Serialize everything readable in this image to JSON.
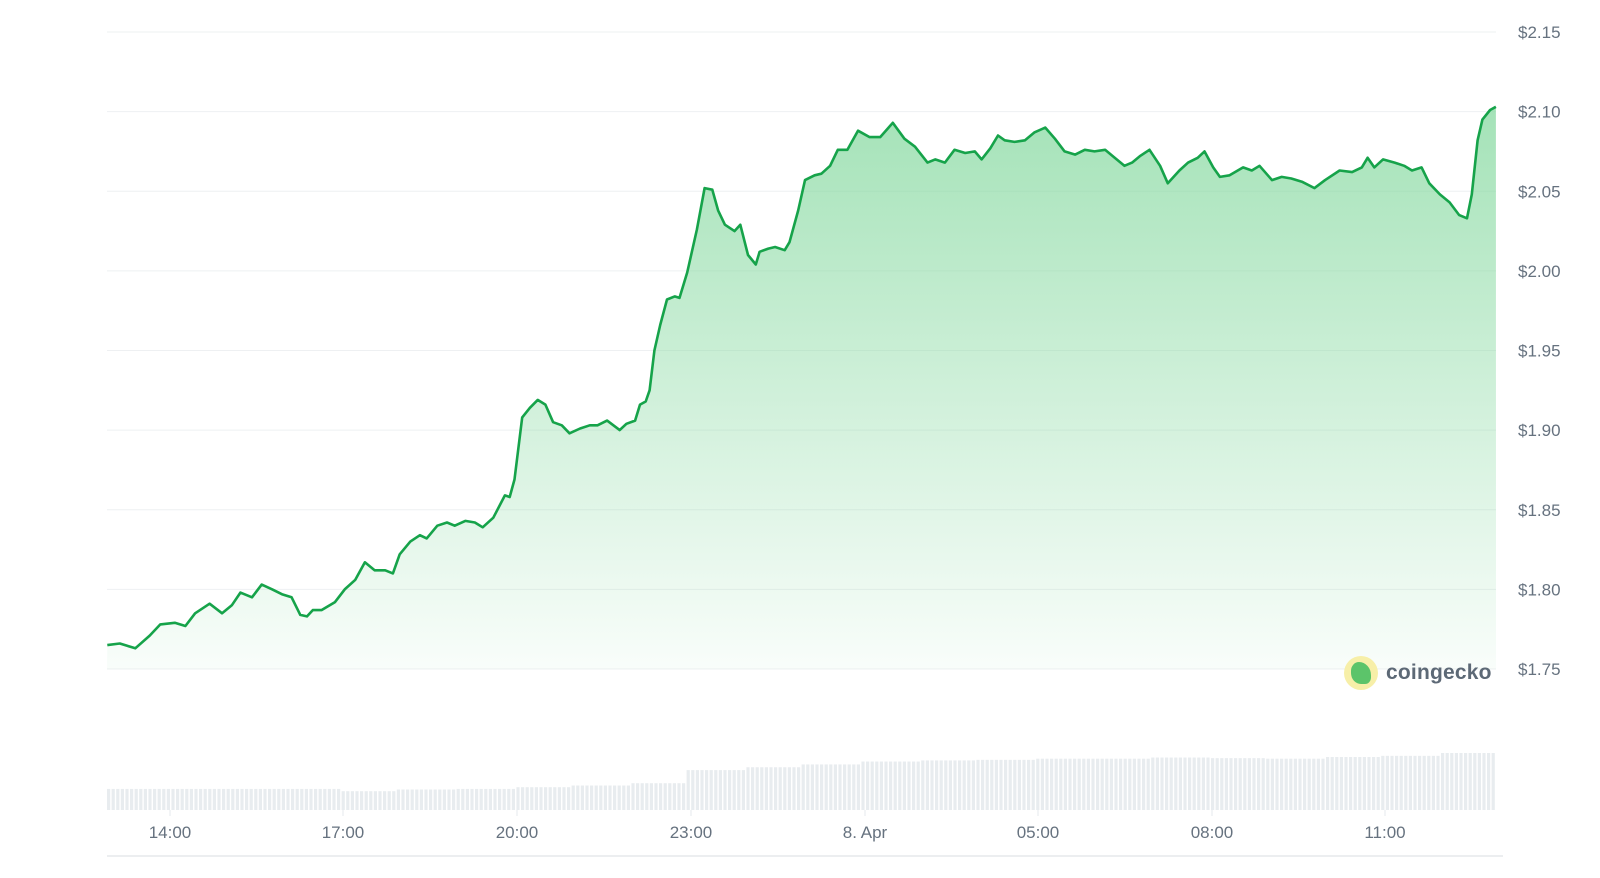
{
  "chart_data": {
    "type": "area",
    "title": "",
    "xlabel": "",
    "ylabel": "",
    "y_tick_labels": [
      "$2.15",
      "$2.10",
      "$2.05",
      "$2.00",
      "$1.95",
      "$1.90",
      "$1.85",
      "$1.80",
      "$1.75"
    ],
    "y_ticks": [
      2.15,
      2.1,
      2.05,
      2.0,
      1.95,
      1.9,
      1.85,
      1.8,
      1.75
    ],
    "ylim": [
      1.75,
      2.15
    ],
    "x_tick_labels": [
      "14:00",
      "17:00",
      "20:00",
      "23:00",
      "8. Apr",
      "05:00",
      "08:00",
      "11:00"
    ],
    "x_range": [
      "12:55",
      "12:55 (next day)"
    ],
    "grid": "horizontal",
    "line_color": "#16a34a",
    "fill_color": "#86d9a0",
    "series": [
      {
        "points": [
          [
            "12:55",
            1.765
          ],
          [
            "13:08",
            1.766
          ],
          [
            "13:24",
            1.763
          ],
          [
            "13:39",
            1.771
          ],
          [
            "13:50",
            1.778
          ],
          [
            "14:05",
            1.779
          ],
          [
            "14:16",
            1.777
          ],
          [
            "14:26",
            1.785
          ],
          [
            "14:41",
            1.791
          ],
          [
            "14:54",
            1.785
          ],
          [
            "15:04",
            1.79
          ],
          [
            "15:13",
            1.798
          ],
          [
            "15:25",
            1.795
          ],
          [
            "15:35",
            1.803
          ],
          [
            "15:46",
            1.8
          ],
          [
            "15:56",
            1.797
          ],
          [
            "16:06",
            1.795
          ],
          [
            "16:15",
            1.784
          ],
          [
            "16:22",
            1.783
          ],
          [
            "16:28",
            1.787
          ],
          [
            "16:37",
            1.787
          ],
          [
            "16:51",
            1.792
          ],
          [
            "17:01",
            1.8
          ],
          [
            "17:12",
            1.806
          ],
          [
            "17:22",
            1.817
          ],
          [
            "17:32",
            1.812
          ],
          [
            "17:43",
            1.812
          ],
          [
            "17:51",
            1.81
          ],
          [
            "17:58",
            1.822
          ],
          [
            "18:09",
            1.83
          ],
          [
            "18:19",
            1.834
          ],
          [
            "18:26",
            1.832
          ],
          [
            "18:37",
            1.84
          ],
          [
            "18:47",
            1.842
          ],
          [
            "18:55",
            1.84
          ],
          [
            "19:06",
            1.843
          ],
          [
            "19:16",
            1.842
          ],
          [
            "19:24",
            1.839
          ],
          [
            "19:35",
            1.845
          ],
          [
            "19:47",
            1.859
          ],
          [
            "19:52",
            1.858
          ],
          [
            "19:57",
            1.869
          ],
          [
            "20:05",
            1.908
          ],
          [
            "20:13",
            1.914
          ],
          [
            "20:21",
            1.919
          ],
          [
            "20:29",
            1.916
          ],
          [
            "20:37",
            1.905
          ],
          [
            "20:46",
            1.903
          ],
          [
            "20:54",
            1.898
          ],
          [
            "21:05",
            1.901
          ],
          [
            "21:15",
            1.903
          ],
          [
            "21:23",
            1.903
          ],
          [
            "21:33",
            1.906
          ],
          [
            "21:46",
            1.9
          ],
          [
            "21:53",
            1.904
          ],
          [
            "22:02",
            1.906
          ],
          [
            "22:07",
            1.916
          ],
          [
            "22:13",
            1.918
          ],
          [
            "22:17",
            1.925
          ],
          [
            "22:22",
            1.95
          ],
          [
            "22:28",
            1.966
          ],
          [
            "22:35",
            1.982
          ],
          [
            "22:43",
            1.984
          ],
          [
            "22:48",
            1.983
          ],
          [
            "22:56",
            1.999
          ],
          [
            "23:06",
            2.026
          ],
          [
            "23:14",
            2.052
          ],
          [
            "23:22",
            2.051
          ],
          [
            "23:28",
            2.038
          ],
          [
            "23:35",
            2.029
          ],
          [
            "23:45",
            2.025
          ],
          [
            "23:51",
            2.029
          ],
          [
            "23:59",
            2.01
          ],
          [
            "00:07",
            2.004
          ],
          [
            "00:11",
            2.012
          ],
          [
            "00:20",
            2.014
          ],
          [
            "00:27",
            2.015
          ],
          [
            "00:37",
            2.013
          ],
          [
            "00:42",
            2.018
          ],
          [
            "00:51",
            2.038
          ],
          [
            "00:58",
            2.057
          ],
          [
            "01:08",
            2.06
          ],
          [
            "01:15",
            2.061
          ],
          [
            "01:24",
            2.066
          ],
          [
            "01:32",
            2.076
          ],
          [
            "01:42",
            2.076
          ],
          [
            "01:53",
            2.088
          ],
          [
            "02:05",
            2.084
          ],
          [
            "02:16",
            2.084
          ],
          [
            "02:29",
            2.093
          ],
          [
            "02:41",
            2.083
          ],
          [
            "02:52",
            2.078
          ],
          [
            "03:05",
            2.068
          ],
          [
            "03:13",
            2.07
          ],
          [
            "03:23",
            2.068
          ],
          [
            "03:33",
            2.076
          ],
          [
            "03:44",
            2.074
          ],
          [
            "03:54",
            2.075
          ],
          [
            "04:01",
            2.07
          ],
          [
            "04:10",
            2.077
          ],
          [
            "04:18",
            2.085
          ],
          [
            "04:25",
            2.082
          ],
          [
            "04:35",
            2.081
          ],
          [
            "04:46",
            2.082
          ],
          [
            "04:56",
            2.087
          ],
          [
            "05:07",
            2.09
          ],
          [
            "05:17",
            2.083
          ],
          [
            "05:27",
            2.075
          ],
          [
            "05:38",
            2.073
          ],
          [
            "05:48",
            2.076
          ],
          [
            "05:58",
            2.075
          ],
          [
            "06:09",
            2.076
          ],
          [
            "06:19",
            2.071
          ],
          [
            "06:29",
            2.066
          ],
          [
            "06:37",
            2.068
          ],
          [
            "06:45",
            2.072
          ],
          [
            "06:55",
            2.076
          ],
          [
            "07:06",
            2.066
          ],
          [
            "07:14",
            2.055
          ],
          [
            "07:26",
            2.063
          ],
          [
            "07:35",
            2.068
          ],
          [
            "07:45",
            2.071
          ],
          [
            "07:52",
            2.075
          ],
          [
            "08:01",
            2.065
          ],
          [
            "08:08",
            2.059
          ],
          [
            "08:18",
            2.06
          ],
          [
            "08:32",
            2.065
          ],
          [
            "08:41",
            2.063
          ],
          [
            "08:49",
            2.066
          ],
          [
            "09:02",
            2.057
          ],
          [
            "09:12",
            2.059
          ],
          [
            "09:22",
            2.058
          ],
          [
            "09:33",
            2.056
          ],
          [
            "09:46",
            2.052
          ],
          [
            "09:57",
            2.057
          ],
          [
            "10:12",
            2.063
          ],
          [
            "10:25",
            2.062
          ],
          [
            "10:35",
            2.065
          ],
          [
            "10:41",
            2.071
          ],
          [
            "10:48",
            2.065
          ],
          [
            "10:57",
            2.07
          ],
          [
            "11:09",
            2.068
          ],
          [
            "11:19",
            2.066
          ],
          [
            "11:27",
            2.063
          ],
          [
            "11:37",
            2.065
          ],
          [
            "11:45",
            2.055
          ],
          [
            "11:56",
            2.048
          ],
          [
            "12:06",
            2.043
          ],
          [
            "12:16",
            2.035
          ],
          [
            "12:24",
            2.033
          ],
          [
            "12:29",
            2.048
          ],
          [
            "12:35",
            2.082
          ],
          [
            "12:40",
            2.095
          ],
          [
            "12:48",
            2.101
          ],
          [
            "12:54",
            2.103
          ]
        ]
      }
    ],
    "volume_relative_hourly": [
      0.37,
      0.37,
      0.37,
      0.37,
      0.33,
      0.36,
      0.37,
      0.4,
      0.43,
      0.47,
      0.7,
      0.75,
      0.8,
      0.85,
      0.87,
      0.88,
      0.9,
      0.9,
      0.92,
      0.91,
      0.9,
      0.93,
      0.95,
      1.0
    ]
  },
  "brand": {
    "name": "coingecko"
  }
}
